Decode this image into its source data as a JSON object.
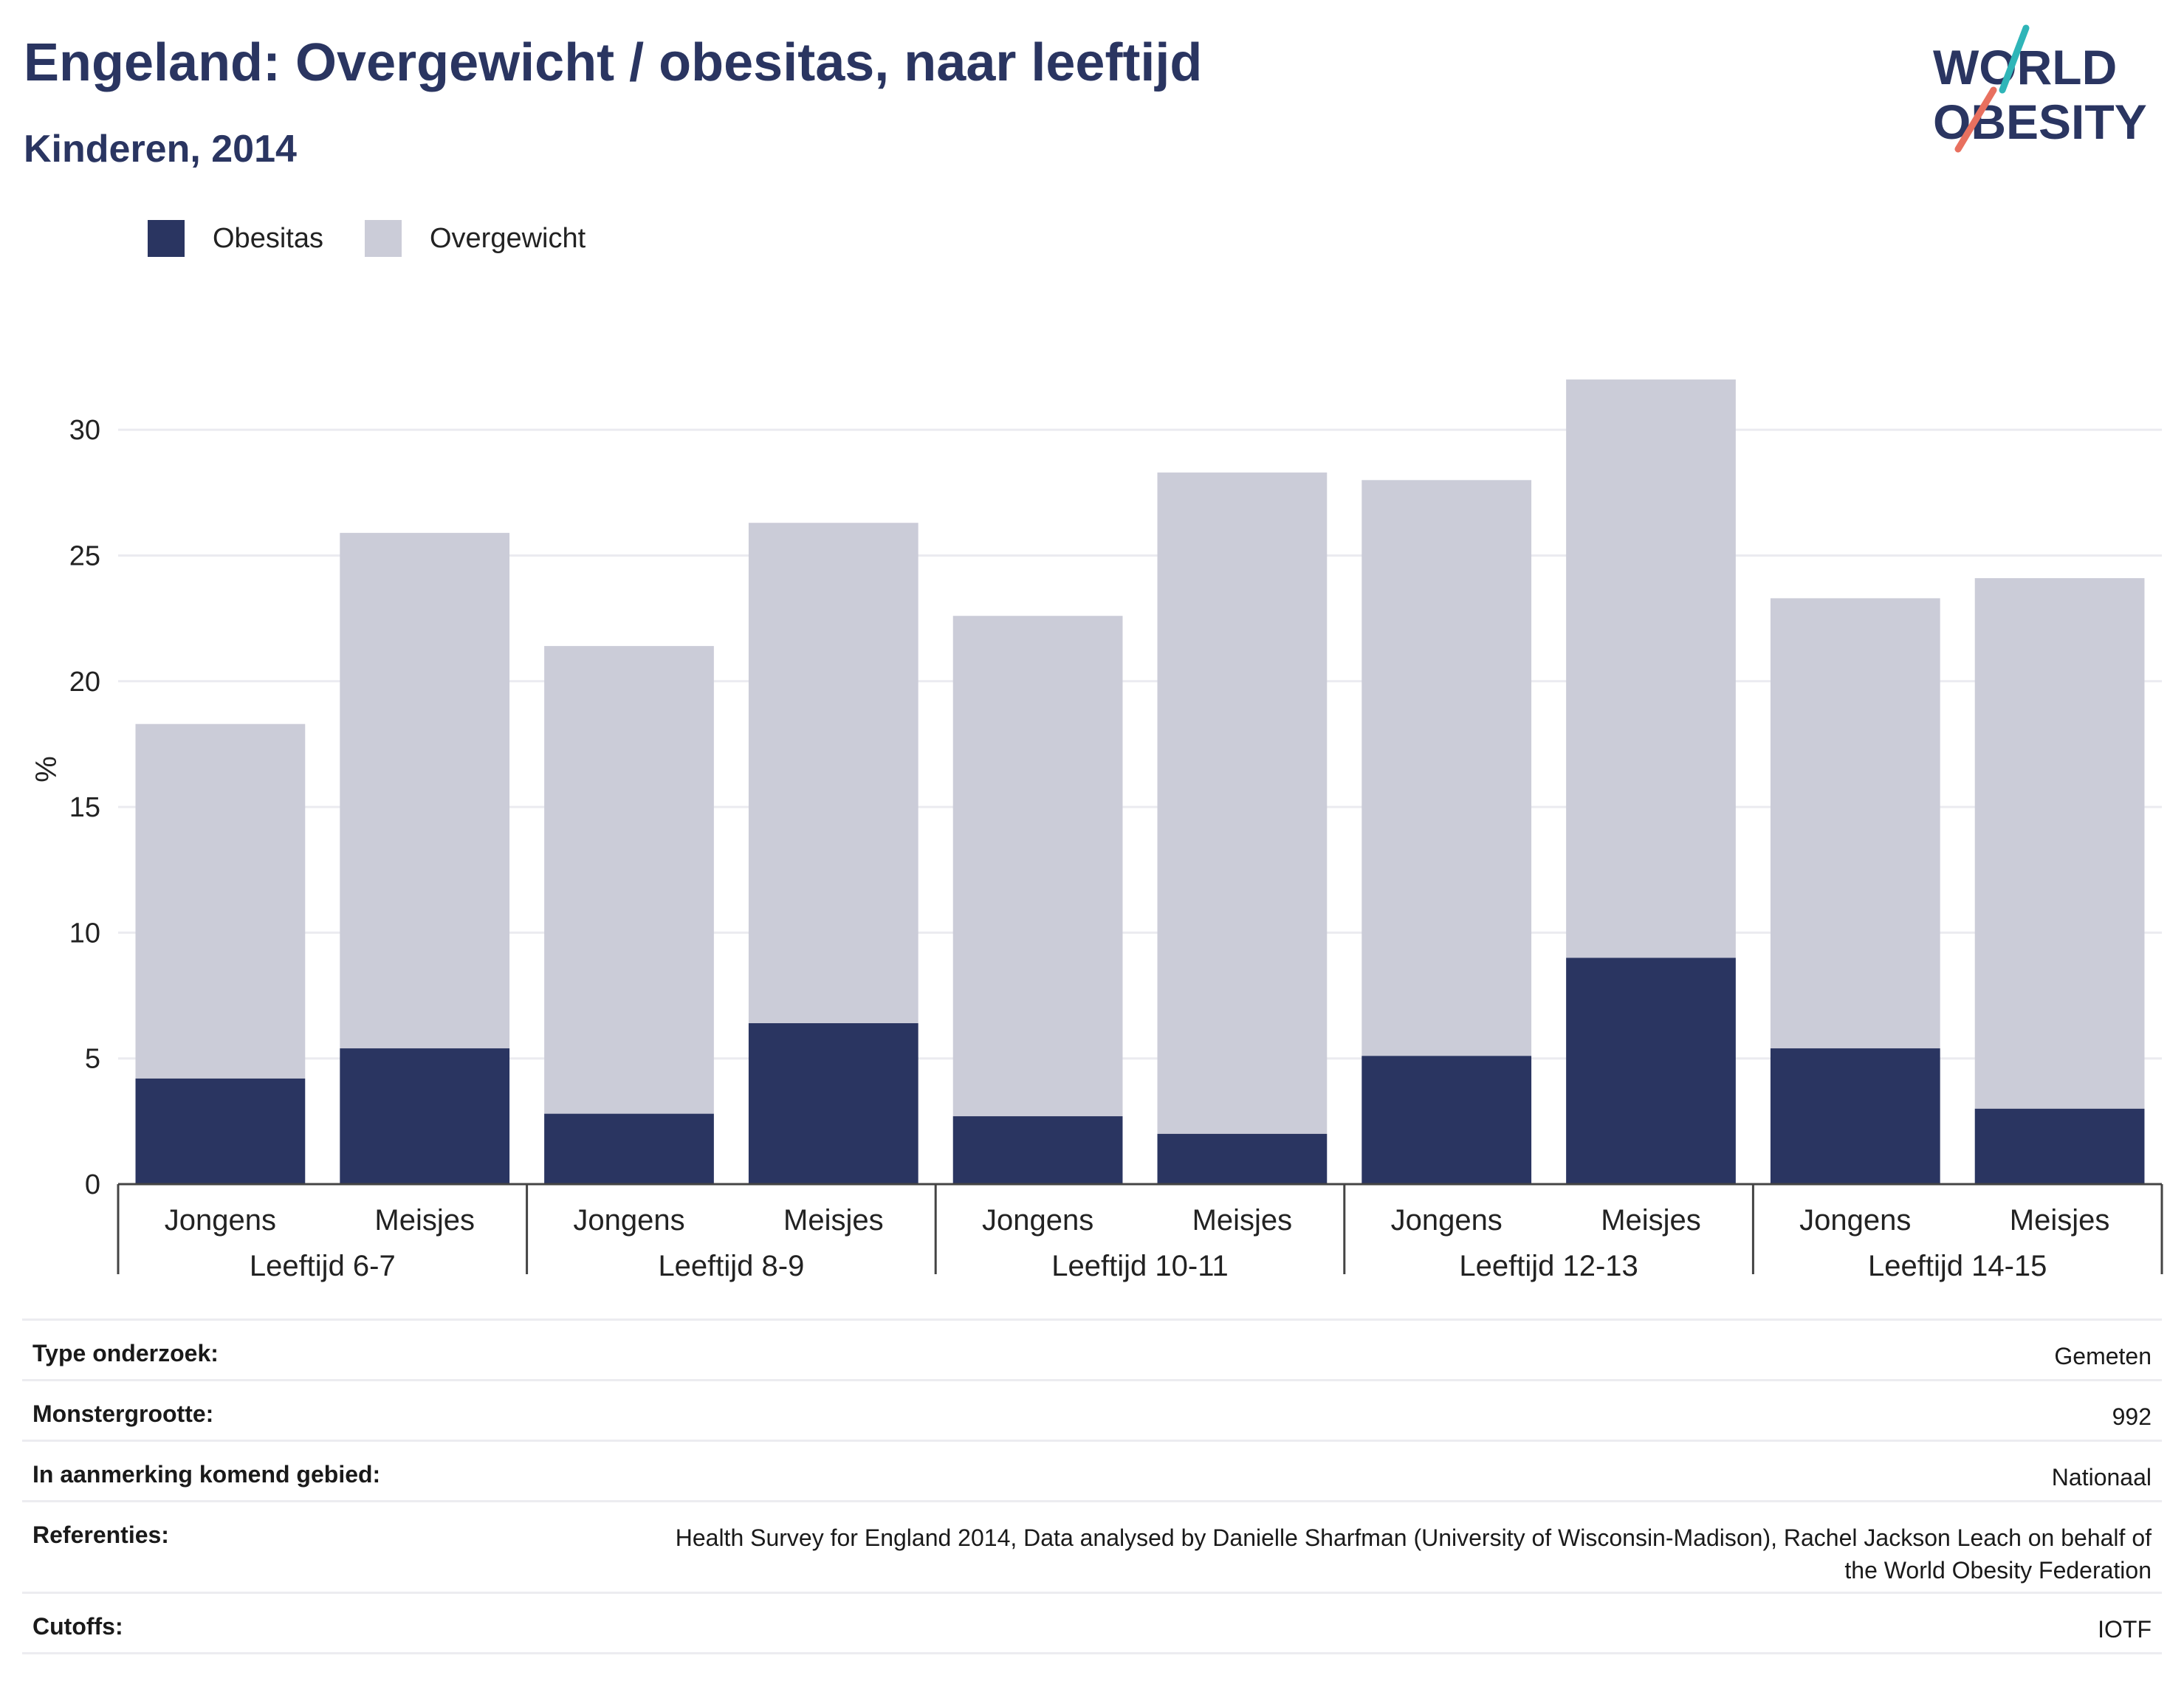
{
  "header": {
    "title": "Engeland: Overgewicht / obesitas, naar leeftijd",
    "subtitle": "Kinderen, 2014"
  },
  "logo": {
    "line1": "WORLD",
    "line2": "OBESITY"
  },
  "colors": {
    "obesitas": "#2a3561",
    "overgewicht": "#cbccd8",
    "text_dark": "#2a3561",
    "logo_teal": "#2fb5b8",
    "logo_coral": "#e8705f"
  },
  "legend": [
    "Obesitas",
    "Overgewicht"
  ],
  "chart_data": {
    "type": "bar",
    "stacked": true,
    "title": "Engeland: Overgewicht / obesitas, naar leeftijd",
    "subtitle": "Kinderen, 2014",
    "ylabel": "%",
    "ylim": [
      0,
      33
    ],
    "yticks": [
      0,
      5,
      10,
      15,
      20,
      25,
      30
    ],
    "grid": true,
    "legend_position": "top-left",
    "categories": [
      "Jongens",
      "Meisjes",
      "Jongens",
      "Meisjes",
      "Jongens",
      "Meisjes",
      "Jongens",
      "Meisjes",
      "Jongens",
      "Meisjes"
    ],
    "groups": [
      "Leeftijd 6-7",
      "Leeftijd 8-9",
      "Leeftijd 10-11",
      "Leeftijd 12-13",
      "Leeftijd 14-15"
    ],
    "series": [
      {
        "name": "Obesitas",
        "values": [
          4.2,
          5.4,
          2.8,
          6.4,
          2.7,
          2.0,
          5.1,
          9.0,
          5.4,
          3.0
        ]
      },
      {
        "name": "Overgewicht",
        "values": [
          14.1,
          20.5,
          18.6,
          19.9,
          19.9,
          26.3,
          22.9,
          23.0,
          17.9,
          21.1
        ]
      }
    ]
  },
  "info": [
    {
      "label": "Type onderzoek:",
      "value": "Gemeten"
    },
    {
      "label": "Monstergrootte:",
      "value": "992"
    },
    {
      "label": "In aanmerking komend gebied:",
      "value": "Nationaal"
    },
    {
      "label": "Referenties:",
      "value": "Health Survey for England 2014, Data analysed by Danielle Sharfman (University of Wisconsin-Madison), Rachel Jackson Leach on behalf of the World Obesity Federation"
    },
    {
      "label": "Cutoffs:",
      "value": "IOTF"
    }
  ]
}
